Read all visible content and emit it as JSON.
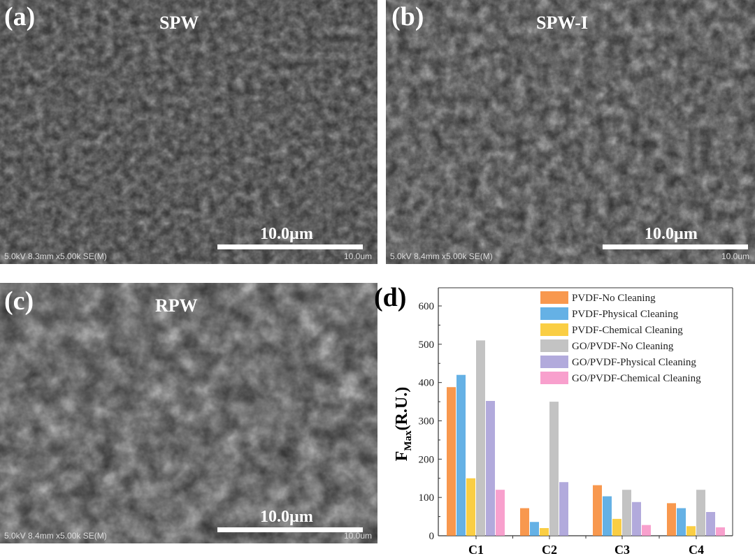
{
  "panels": [
    {
      "label": "(a)",
      "title": "SPW",
      "scale": "10.0µm",
      "meta_left": "5.0kV 8.3mm x5.00k SE(M)",
      "meta_right": "10.0um"
    },
    {
      "label": "(b)",
      "title": "SPW-I",
      "scale": "10.0µm",
      "meta_left": "5.0kV 8.4mm x5.00k SE(M)",
      "meta_right": "10.0um"
    },
    {
      "label": "(c)",
      "title": "RPW",
      "scale": "10.0µm",
      "meta_left": "5.0kV 8.4mm x5.00k SE(M)",
      "meta_right": "10.0um"
    }
  ],
  "chart_label": "(d)",
  "chart_data": {
    "type": "bar",
    "categories": [
      "C1",
      "C2",
      "C3",
      "C4"
    ],
    "ylabel_main": "F",
    "ylabel_sub": "Max",
    "ylabel_unit": "(R.U.)",
    "ylim": [
      0,
      650
    ],
    "yticks": [
      0,
      100,
      200,
      300,
      400,
      500,
      600
    ],
    "legend_position": "top-right",
    "series": [
      {
        "name": "PVDF-No Cleaning",
        "color": "#f7862f",
        "values": [
          388,
          72,
          132,
          85
        ]
      },
      {
        "name": "PVDF-Physical Cleaning",
        "color": "#4aa3e0",
        "values": [
          420,
          36,
          103,
          72
        ]
      },
      {
        "name": "PVDF-Chemical Cleaning",
        "color": "#f9c623",
        "values": [
          150,
          20,
          44,
          25
        ]
      },
      {
        "name": "GO/PVDF-No Cleaning",
        "color": "#b8b8b8",
        "values": [
          510,
          350,
          120,
          120
        ]
      },
      {
        "name": "GO/PVDF-Physical Cleaning",
        "color": "#a59bd6",
        "values": [
          352,
          140,
          88,
          62
        ]
      },
      {
        "name": "GO/PVDF-Chemical Cleaning",
        "color": "#f78fc4",
        "values": [
          120,
          0,
          28,
          22
        ]
      }
    ]
  }
}
